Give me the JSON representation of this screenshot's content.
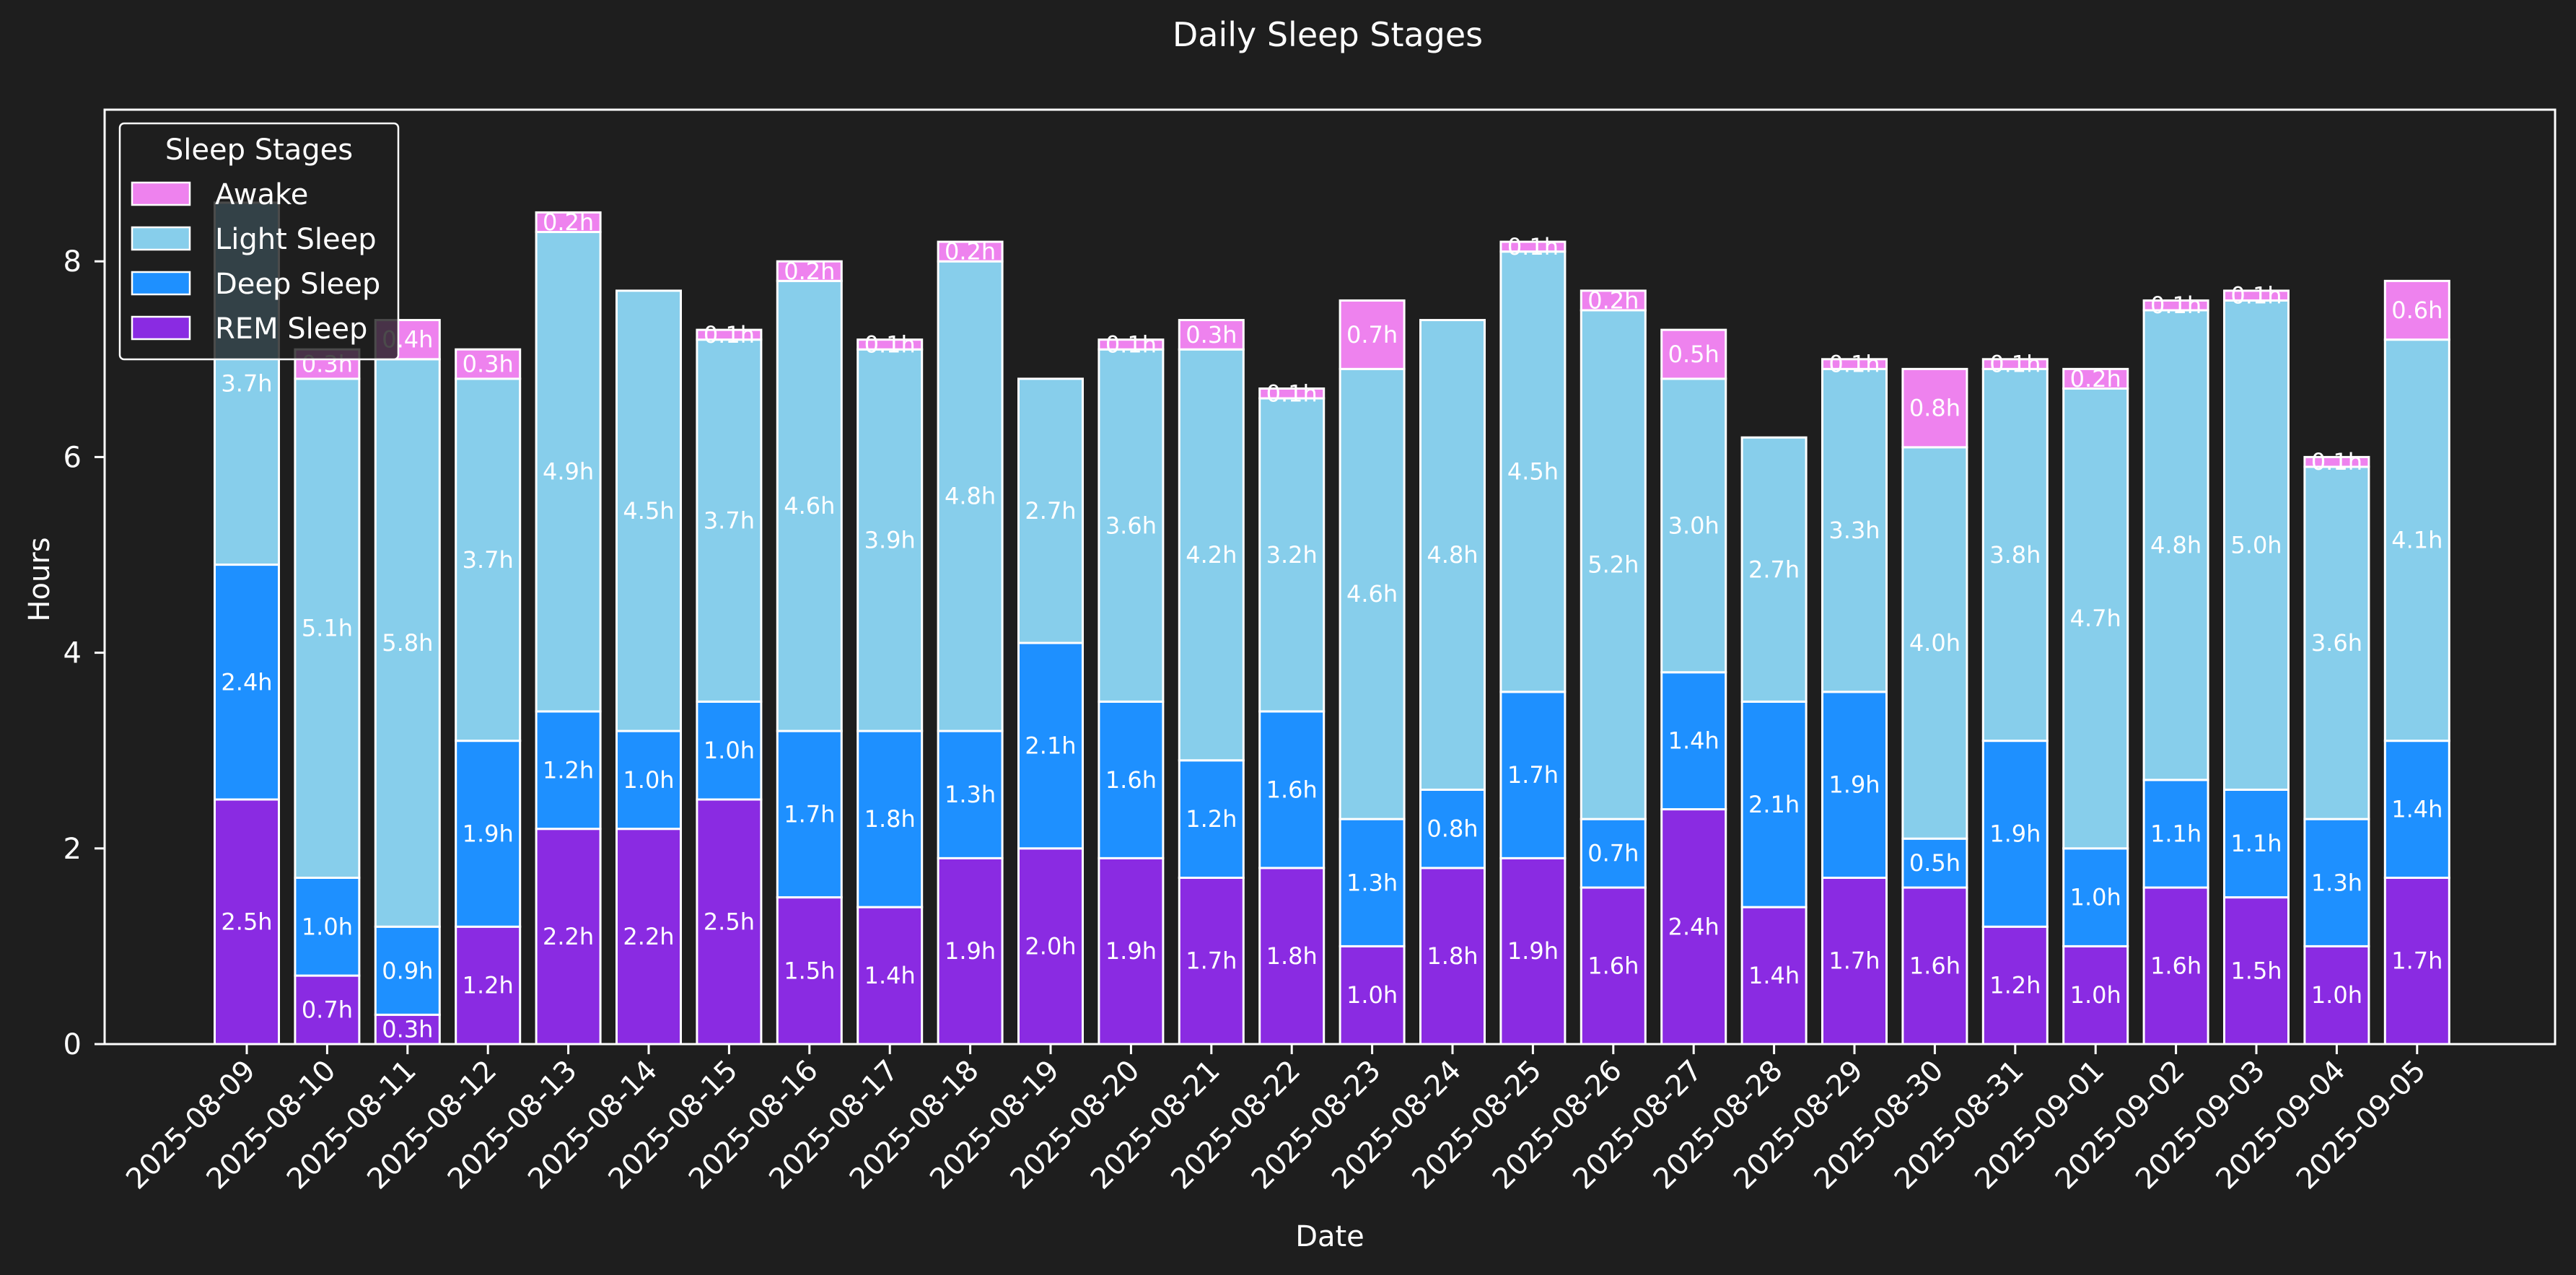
{
  "colors": {
    "background": "#1e1e1e",
    "text": "#ffffff",
    "bar_edge": "#ffffff",
    "rem": "#8a2be2",
    "deep": "#1e90ff",
    "light": "#87ceeb",
    "awake": "#ee82ee"
  },
  "chart_data": {
    "type": "bar",
    "stacked": true,
    "title": "Daily Sleep Stages",
    "xlabel": "Date",
    "ylabel": "Hours",
    "ylim": [
      0,
      9.6
    ],
    "yticks": [
      0,
      2,
      4,
      6,
      8
    ],
    "grid": false,
    "legend": {
      "title": "Sleep Stages",
      "position": "top-left"
    },
    "value_label_suffix": "h",
    "categories": [
      "2025-08-09",
      "2025-08-10",
      "2025-08-11",
      "2025-08-12",
      "2025-08-13",
      "2025-08-14",
      "2025-08-15",
      "2025-08-16",
      "2025-08-17",
      "2025-08-18",
      "2025-08-19",
      "2025-08-20",
      "2025-08-21",
      "2025-08-22",
      "2025-08-23",
      "2025-08-24",
      "2025-08-25",
      "2025-08-26",
      "2025-08-27",
      "2025-08-28",
      "2025-08-29",
      "2025-08-30",
      "2025-08-31",
      "2025-09-01",
      "2025-09-02",
      "2025-09-03",
      "2025-09-04",
      "2025-09-05"
    ],
    "series": [
      {
        "name": "REM Sleep",
        "color": "#8a2be2",
        "values": [
          2.5,
          0.7,
          0.3,
          1.2,
          2.2,
          2.2,
          2.5,
          1.5,
          1.4,
          1.9,
          2.0,
          1.9,
          1.7,
          1.8,
          1.0,
          1.8,
          1.9,
          1.6,
          2.4,
          1.4,
          1.7,
          1.6,
          1.2,
          1.0,
          1.6,
          1.5,
          1.0,
          1.7
        ]
      },
      {
        "name": "Deep Sleep",
        "color": "#1e90ff",
        "values": [
          2.4,
          1.0,
          0.9,
          1.9,
          1.2,
          1.0,
          1.0,
          1.7,
          1.8,
          1.3,
          2.1,
          1.6,
          1.2,
          1.6,
          1.3,
          0.8,
          1.7,
          0.7,
          1.4,
          2.1,
          1.9,
          0.5,
          1.9,
          1.0,
          1.1,
          1.1,
          1.3,
          1.4
        ]
      },
      {
        "name": "Light Sleep",
        "color": "#87ceeb",
        "values": [
          3.7,
          5.1,
          5.8,
          3.7,
          4.9,
          4.5,
          3.7,
          4.6,
          3.9,
          4.8,
          2.7,
          3.6,
          4.2,
          3.2,
          4.6,
          4.8,
          4.5,
          5.2,
          3.0,
          2.7,
          3.3,
          4.0,
          3.8,
          4.7,
          4.8,
          5.0,
          3.6,
          4.1
        ]
      },
      {
        "name": "Awake",
        "color": "#ee82ee",
        "values": [
          0.0,
          0.3,
          0.4,
          0.3,
          0.2,
          0.0,
          0.1,
          0.2,
          0.1,
          0.2,
          0.0,
          0.1,
          0.3,
          0.1,
          0.7,
          0.0,
          0.1,
          0.2,
          0.5,
          0.0,
          0.1,
          0.8,
          0.1,
          0.2,
          0.1,
          0.1,
          0.1,
          0.6
        ]
      }
    ]
  }
}
